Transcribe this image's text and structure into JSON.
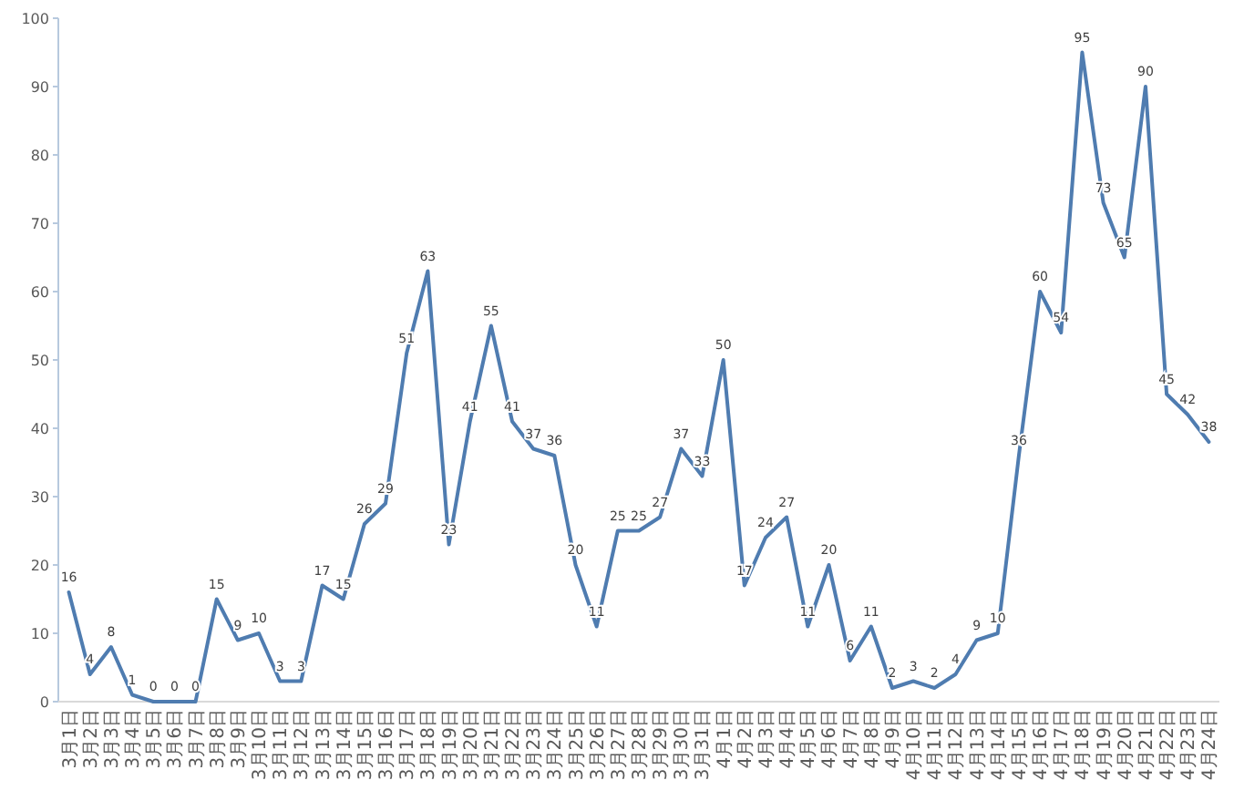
{
  "chart_data": {
    "type": "line",
    "categories": [
      "3月1日",
      "3月2日",
      "3月3日",
      "3月4日",
      "3月5日",
      "3月6日",
      "3月7日",
      "3月8日",
      "3月9日",
      "3月10日",
      "3月11日",
      "3月12日",
      "3月13日",
      "3月14日",
      "3月15日",
      "3月16日",
      "3月17日",
      "3月18日",
      "3月19日",
      "3月20日",
      "3月21日",
      "3月22日",
      "3月23日",
      "3月24日",
      "3月25日",
      "3月26日",
      "3月27日",
      "3月28日",
      "3月29日",
      "3月30日",
      "3月31日",
      "4月1日",
      "4月2日",
      "4月3日",
      "4月4日",
      "4月5日",
      "4月6日",
      "4月7日",
      "4月8日",
      "4月9日",
      "4月10日",
      "4月11日",
      "4月12日",
      "4月13日",
      "4月14日",
      "4月15日",
      "4月16日",
      "4月17日",
      "4月18日",
      "4月19日",
      "4月20日",
      "4月21日",
      "4月22日",
      "4月23日",
      "4月24日"
    ],
    "values": [
      16,
      4,
      8,
      1,
      0,
      0,
      0,
      15,
      9,
      10,
      3,
      3,
      17,
      15,
      26,
      29,
      51,
      63,
      23,
      41,
      55,
      41,
      37,
      36,
      20,
      11,
      25,
      25,
      27,
      37,
      33,
      50,
      17,
      24,
      27,
      11,
      20,
      6,
      11,
      2,
      3,
      2,
      4,
      9,
      10,
      36,
      60,
      54,
      95,
      73,
      65,
      90,
      45,
      42,
      38
    ],
    "color": "#4f7cb0",
    "ylim": [
      0,
      100
    ],
    "yticks": [
      0,
      10,
      20,
      30,
      40,
      50,
      60,
      70,
      80,
      90,
      100
    ],
    "data_labels": true
  }
}
